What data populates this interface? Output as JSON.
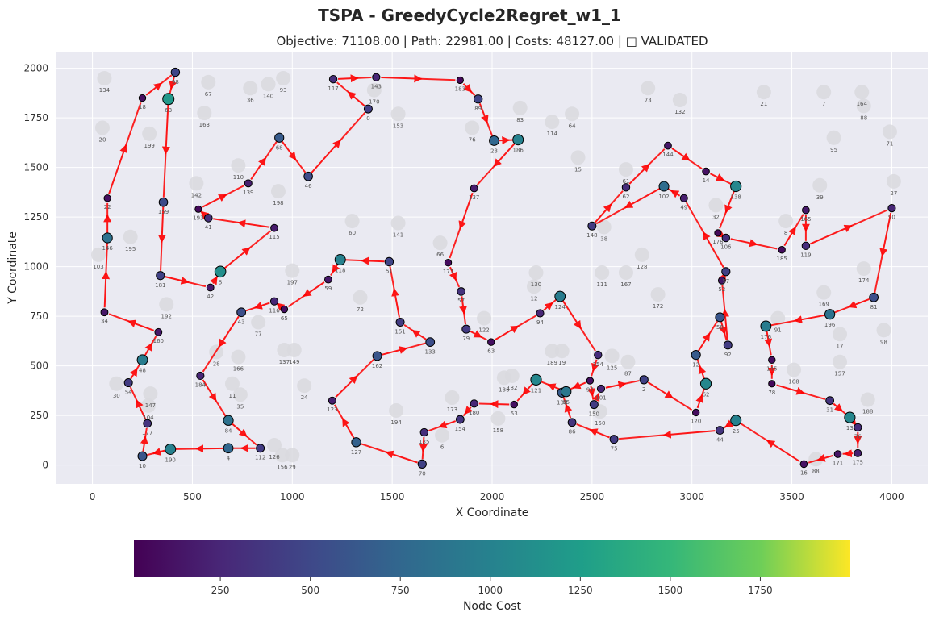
{
  "chart_data": {
    "type": "scatter",
    "title": "TSPA - GreedyCycle2Regret_w1_1",
    "subtitle": "Objective: 71108.00 | Path: 22981.00 | Costs: 48127.00 | □ VALIDATED",
    "xlabel": "X Coordinate",
    "ylabel": "Y Coordinate",
    "xlim": [
      -180,
      4180
    ],
    "ylim": [
      -95,
      2080
    ],
    "xticks": [
      0,
      500,
      1000,
      1500,
      2000,
      2500,
      3000,
      3500,
      4000
    ],
    "yticks": [
      0,
      250,
      500,
      750,
      1000,
      1250,
      1500,
      1750,
      2000
    ],
    "grid": true,
    "colorbar": {
      "label": "Node Cost",
      "range": [
        10,
        2000
      ],
      "ticks": [
        250,
        500,
        750,
        1000,
        1250,
        1500,
        1750
      ]
    },
    "selected_nodes": [
      {
        "id": "18",
        "x": 250,
        "y": 1850,
        "cost": 90
      },
      {
        "id": "98",
        "x": 415,
        "y": 1980,
        "cost": 480
      },
      {
        "id": "63",
        "x": 380,
        "y": 1845,
        "cost": 1200
      },
      {
        "id": "159",
        "x": 355,
        "y": 1325,
        "cost": 520
      },
      {
        "id": "181",
        "x": 340,
        "y": 955,
        "cost": 450
      },
      {
        "id": "42",
        "x": 590,
        "y": 895,
        "cost": 160
      },
      {
        "id": "5",
        "x": 640,
        "y": 975,
        "cost": 1120
      },
      {
        "id": "115",
        "x": 910,
        "y": 1195,
        "cost": 180
      },
      {
        "id": "41",
        "x": 580,
        "y": 1245,
        "cost": 320
      },
      {
        "id": "193",
        "x": 530,
        "y": 1290,
        "cost": 60
      },
      {
        "id": "139",
        "x": 780,
        "y": 1420,
        "cost": 200
      },
      {
        "id": "68",
        "x": 935,
        "y": 1650,
        "cost": 650
      },
      {
        "id": "46",
        "x": 1080,
        "y": 1455,
        "cost": 520
      },
      {
        "id": "0",
        "x": 1380,
        "y": 1795,
        "cost": 420
      },
      {
        "id": "117",
        "x": 1205,
        "y": 1945,
        "cost": 300
      },
      {
        "id": "143",
        "x": 1420,
        "y": 1955,
        "cost": 250
      },
      {
        "id": "183",
        "x": 1840,
        "y": 1940,
        "cost": 60
      },
      {
        "id": "89",
        "x": 1930,
        "y": 1845,
        "cost": 480
      },
      {
        "id": "23",
        "x": 2010,
        "y": 1635,
        "cost": 750
      },
      {
        "id": "186",
        "x": 2130,
        "y": 1640,
        "cost": 1000
      },
      {
        "id": "137",
        "x": 1910,
        "y": 1395,
        "cost": 180
      },
      {
        "id": "177",
        "x": 1780,
        "y": 1020,
        "cost": 80
      },
      {
        "id": "57",
        "x": 1845,
        "y": 875,
        "cost": 340
      },
      {
        "id": "79",
        "x": 1870,
        "y": 685,
        "cost": 400
      },
      {
        "id": "63b",
        "x": 1995,
        "y": 620,
        "cost": 100
      },
      {
        "id": "94",
        "x": 2240,
        "y": 765,
        "cost": 250
      },
      {
        "id": "124",
        "x": 2340,
        "y": 850,
        "cost": 950
      },
      {
        "id": "154",
        "x": 2530,
        "y": 555,
        "cost": 300
      },
      {
        "id": "97",
        "x": 2490,
        "y": 425,
        "cost": 100
      },
      {
        "id": "121",
        "x": 2220,
        "y": 430,
        "cost": 1050
      },
      {
        "id": "108",
        "x": 2350,
        "y": 365,
        "cost": 650
      },
      {
        "id": "65",
        "x": 2370,
        "y": 370,
        "cost": 900
      },
      {
        "id": "101",
        "x": 2545,
        "y": 385,
        "cost": 250
      },
      {
        "id": "86",
        "x": 2400,
        "y": 215,
        "cost": 350
      },
      {
        "id": "75",
        "x": 2610,
        "y": 130,
        "cost": 400
      },
      {
        "id": "150",
        "x": 2510,
        "y": 305,
        "cost": 400
      },
      {
        "id": "2",
        "x": 2760,
        "y": 430,
        "cost": 450
      },
      {
        "id": "120",
        "x": 3020,
        "y": 265,
        "cost": 80
      },
      {
        "id": "62",
        "x": 3070,
        "y": 410,
        "cost": 1050
      },
      {
        "id": "12",
        "x": 3020,
        "y": 555,
        "cost": 650
      },
      {
        "id": "58",
        "x": 3140,
        "y": 745,
        "cost": 600
      },
      {
        "id": "92",
        "x": 3180,
        "y": 605,
        "cost": 400
      },
      {
        "id": "52",
        "x": 3150,
        "y": 930,
        "cost": 150
      },
      {
        "id": "57b",
        "x": 3170,
        "y": 975,
        "cost": 450
      },
      {
        "id": "49",
        "x": 2960,
        "y": 1345,
        "cost": 200
      },
      {
        "id": "102",
        "x": 2860,
        "y": 1405,
        "cost": 800
      },
      {
        "id": "148",
        "x": 2500,
        "y": 1205,
        "cost": 400
      },
      {
        "id": "62b",
        "x": 2670,
        "y": 1400,
        "cost": 300
      },
      {
        "id": "144",
        "x": 2880,
        "y": 1610,
        "cost": 150
      },
      {
        "id": "14",
        "x": 3070,
        "y": 1480,
        "cost": 120
      },
      {
        "id": "138",
        "x": 3220,
        "y": 1405,
        "cost": 1050
      },
      {
        "id": "178",
        "x": 3130,
        "y": 1170,
        "cost": 60
      },
      {
        "id": "106",
        "x": 3170,
        "y": 1145,
        "cost": 300
      },
      {
        "id": "185",
        "x": 3450,
        "y": 1085,
        "cost": 80
      },
      {
        "id": "165",
        "x": 3570,
        "y": 1285,
        "cost": 160
      },
      {
        "id": "119",
        "x": 3570,
        "y": 1105,
        "cost": 300
      },
      {
        "id": "90",
        "x": 4000,
        "y": 1295,
        "cost": 250
      },
      {
        "id": "81",
        "x": 3910,
        "y": 845,
        "cost": 550
      },
      {
        "id": "196",
        "x": 3690,
        "y": 760,
        "cost": 850
      },
      {
        "id": "176",
        "x": 3370,
        "y": 700,
        "cost": 950
      },
      {
        "id": "145",
        "x": 3400,
        "y": 530,
        "cost": 90
      },
      {
        "id": "78",
        "x": 3400,
        "y": 410,
        "cost": 60
      },
      {
        "id": "31",
        "x": 3690,
        "y": 325,
        "cost": 350
      },
      {
        "id": "13",
        "x": 3790,
        "y": 240,
        "cost": 1050
      },
      {
        "id": "76",
        "x": 3830,
        "y": 190,
        "cost": 300
      },
      {
        "id": "175",
        "x": 3830,
        "y": 60,
        "cost": 200
      },
      {
        "id": "171",
        "x": 3730,
        "y": 55,
        "cost": 130
      },
      {
        "id": "16",
        "x": 3560,
        "y": 5,
        "cost": 120
      },
      {
        "id": "25",
        "x": 3220,
        "y": 225,
        "cost": 1000
      },
      {
        "id": "44",
        "x": 3140,
        "y": 175,
        "cost": 350
      },
      {
        "id": "53",
        "x": 2110,
        "y": 305,
        "cost": 100
      },
      {
        "id": "180",
        "x": 1910,
        "y": 310,
        "cost": 250
      },
      {
        "id": "154b",
        "x": 1840,
        "y": 230,
        "cost": 350
      },
      {
        "id": "135",
        "x": 1660,
        "y": 165,
        "cost": 300
      },
      {
        "id": "70",
        "x": 1650,
        "y": 5,
        "cost": 450
      },
      {
        "id": "127",
        "x": 1320,
        "y": 115,
        "cost": 700
      },
      {
        "id": "123",
        "x": 1200,
        "y": 325,
        "cost": 200
      },
      {
        "id": "162",
        "x": 1425,
        "y": 550,
        "cost": 600
      },
      {
        "id": "133",
        "x": 1690,
        "y": 620,
        "cost": 550
      },
      {
        "id": "151",
        "x": 1540,
        "y": 720,
        "cost": 400
      },
      {
        "id": "51",
        "x": 1485,
        "y": 1025,
        "cost": 480
      },
      {
        "id": "118",
        "x": 1240,
        "y": 1035,
        "cost": 1000
      },
      {
        "id": "59",
        "x": 1180,
        "y": 935,
        "cost": 150
      },
      {
        "id": "65b",
        "x": 960,
        "y": 785,
        "cost": 100
      },
      {
        "id": "116",
        "x": 910,
        "y": 825,
        "cost": 250
      },
      {
        "id": "43",
        "x": 745,
        "y": 770,
        "cost": 550
      },
      {
        "id": "184",
        "x": 540,
        "y": 450,
        "cost": 250
      },
      {
        "id": "84",
        "x": 680,
        "y": 225,
        "cost": 850
      },
      {
        "id": "112",
        "x": 840,
        "y": 85,
        "cost": 400
      },
      {
        "id": "4",
        "x": 680,
        "y": 85,
        "cost": 750
      },
      {
        "id": "190",
        "x": 390,
        "y": 80,
        "cost": 1000
      },
      {
        "id": "10",
        "x": 250,
        "y": 45,
        "cost": 600
      },
      {
        "id": "177b",
        "x": 275,
        "y": 210,
        "cost": 350
      },
      {
        "id": "54",
        "x": 180,
        "y": 415,
        "cost": 400
      },
      {
        "id": "48",
        "x": 250,
        "y": 530,
        "cost": 950
      },
      {
        "id": "160",
        "x": 330,
        "y": 670,
        "cost": 160
      },
      {
        "id": "34",
        "x": 60,
        "y": 770,
        "cost": 150
      },
      {
        "id": "146",
        "x": 75,
        "y": 1145,
        "cost": 850
      },
      {
        "id": "22",
        "x": 75,
        "y": 1345,
        "cost": 100
      }
    ],
    "route": [
      "18",
      "98",
      "63",
      "159",
      "181",
      "42",
      "5",
      "115",
      "41",
      "193",
      "139",
      "68",
      "46",
      "0",
      "117",
      "143",
      "183",
      "89",
      "23",
      "186",
      "137",
      "177",
      "57",
      "79",
      "63b",
      "94",
      "124",
      "154",
      "97",
      "108",
      "65",
      "121",
      "53",
      "180",
      "154b",
      "135",
      "70",
      "127",
      "123",
      "162",
      "133",
      "151",
      "51",
      "118",
      "59",
      "65b",
      "116",
      "43",
      "184",
      "84",
      "112",
      "4",
      "190",
      "10",
      "177b",
      "54",
      "48",
      "160",
      "34",
      "146",
      "22",
      "18"
    ],
    "route2": [
      "97",
      "150",
      "101",
      "2",
      "120",
      "62",
      "12",
      "58",
      "92",
      "52",
      "57b",
      "49",
      "102",
      "148",
      "62b",
      "144",
      "14",
      "138",
      "178",
      "106",
      "185",
      "165",
      "119",
      "90",
      "81",
      "196",
      "176",
      "145",
      "78",
      "31",
      "13",
      "76",
      "175",
      "171",
      "16",
      "25",
      "44",
      "75",
      "86",
      "108"
    ],
    "unselected_nodes": [
      {
        "id": "134",
        "x": 60,
        "y": 1950
      },
      {
        "id": "67",
        "x": 580,
        "y": 1930
      },
      {
        "id": "36",
        "x": 790,
        "y": 1900
      },
      {
        "id": "140",
        "x": 880,
        "y": 1920
      },
      {
        "id": "93",
        "x": 955,
        "y": 1950
      },
      {
        "id": "170",
        "x": 1410,
        "y": 1890
      },
      {
        "id": "153",
        "x": 1530,
        "y": 1770
      },
      {
        "id": "163",
        "x": 560,
        "y": 1775
      },
      {
        "id": "20",
        "x": 50,
        "y": 1700
      },
      {
        "id": "199",
        "x": 285,
        "y": 1670
      },
      {
        "id": "73",
        "x": 2780,
        "y": 1900
      },
      {
        "id": "132",
        "x": 2940,
        "y": 1840
      },
      {
        "id": "21",
        "x": 3360,
        "y": 1880
      },
      {
        "id": "7",
        "x": 3660,
        "y": 1880
      },
      {
        "id": "164",
        "x": 3850,
        "y": 1880
      },
      {
        "id": "88",
        "x": 3860,
        "y": 1810
      },
      {
        "id": "83",
        "x": 2140,
        "y": 1800
      },
      {
        "id": "114",
        "x": 2300,
        "y": 1730
      },
      {
        "id": "64",
        "x": 2400,
        "y": 1770
      },
      {
        "id": "76b",
        "x": 1900,
        "y": 1700
      },
      {
        "id": "95",
        "x": 3710,
        "y": 1650
      },
      {
        "id": "71",
        "x": 3990,
        "y": 1680
      },
      {
        "id": "15",
        "x": 2430,
        "y": 1550
      },
      {
        "id": "61",
        "x": 2670,
        "y": 1490
      },
      {
        "id": "110",
        "x": 730,
        "y": 1510
      },
      {
        "id": "142",
        "x": 520,
        "y": 1420
      },
      {
        "id": "198",
        "x": 930,
        "y": 1380
      },
      {
        "id": "27",
        "x": 4010,
        "y": 1430
      },
      {
        "id": "39",
        "x": 3640,
        "y": 1410
      },
      {
        "id": "32",
        "x": 3120,
        "y": 1310
      },
      {
        "id": "8",
        "x": 3470,
        "y": 1230
      },
      {
        "id": "60",
        "x": 1300,
        "y": 1230
      },
      {
        "id": "141",
        "x": 1530,
        "y": 1220
      },
      {
        "id": "38",
        "x": 2560,
        "y": 1200
      },
      {
        "id": "195",
        "x": 190,
        "y": 1150
      },
      {
        "id": "103",
        "x": 30,
        "y": 1060
      },
      {
        "id": "66",
        "x": 1740,
        "y": 1120
      },
      {
        "id": "128",
        "x": 2750,
        "y": 1060
      },
      {
        "id": "174",
        "x": 3860,
        "y": 990
      },
      {
        "id": "197",
        "x": 1000,
        "y": 980
      },
      {
        "id": "111",
        "x": 2550,
        "y": 970
      },
      {
        "id": "167",
        "x": 2670,
        "y": 970
      },
      {
        "id": "130",
        "x": 2220,
        "y": 970
      },
      {
        "id": "12b",
        "x": 2210,
        "y": 900
      },
      {
        "id": "172",
        "x": 2830,
        "y": 860
      },
      {
        "id": "169",
        "x": 3660,
        "y": 870
      },
      {
        "id": "192",
        "x": 370,
        "y": 810
      },
      {
        "id": "72",
        "x": 1340,
        "y": 845
      },
      {
        "id": "122",
        "x": 1960,
        "y": 740
      },
      {
        "id": "77",
        "x": 830,
        "y": 720
      },
      {
        "id": "91",
        "x": 3430,
        "y": 740
      },
      {
        "id": "17",
        "x": 3740,
        "y": 660
      },
      {
        "id": "98b",
        "x": 3960,
        "y": 680
      },
      {
        "id": "28",
        "x": 620,
        "y": 570
      },
      {
        "id": "166",
        "x": 730,
        "y": 545
      },
      {
        "id": "137b",
        "x": 960,
        "y": 580
      },
      {
        "id": "149",
        "x": 1010,
        "y": 580
      },
      {
        "id": "189",
        "x": 2300,
        "y": 575
      },
      {
        "id": "19",
        "x": 2350,
        "y": 575
      },
      {
        "id": "125",
        "x": 2600,
        "y": 550
      },
      {
        "id": "87",
        "x": 2680,
        "y": 520
      },
      {
        "id": "157",
        "x": 3740,
        "y": 520
      },
      {
        "id": "168",
        "x": 3510,
        "y": 480
      },
      {
        "id": "30",
        "x": 120,
        "y": 410
      },
      {
        "id": "147",
        "x": 290,
        "y": 360
      },
      {
        "id": "104",
        "x": 280,
        "y": 300
      },
      {
        "id": "11",
        "x": 700,
        "y": 410
      },
      {
        "id": "35",
        "x": 740,
        "y": 355
      },
      {
        "id": "24",
        "x": 1060,
        "y": 400
      },
      {
        "id": "182",
        "x": 2100,
        "y": 450
      },
      {
        "id": "136",
        "x": 2060,
        "y": 440
      },
      {
        "id": "173",
        "x": 1800,
        "y": 340
      },
      {
        "id": "158",
        "x": 2030,
        "y": 235
      },
      {
        "id": "194",
        "x": 1520,
        "y": 275
      },
      {
        "id": "6",
        "x": 1750,
        "y": 150
      },
      {
        "id": "188",
        "x": 3880,
        "y": 330
      },
      {
        "id": "150b",
        "x": 2540,
        "y": 270
      },
      {
        "id": "126",
        "x": 910,
        "y": 100
      },
      {
        "id": "156",
        "x": 950,
        "y": 50
      },
      {
        "id": "29",
        "x": 1000,
        "y": 50
      },
      {
        "id": "88b",
        "x": 3620,
        "y": 30
      }
    ]
  }
}
